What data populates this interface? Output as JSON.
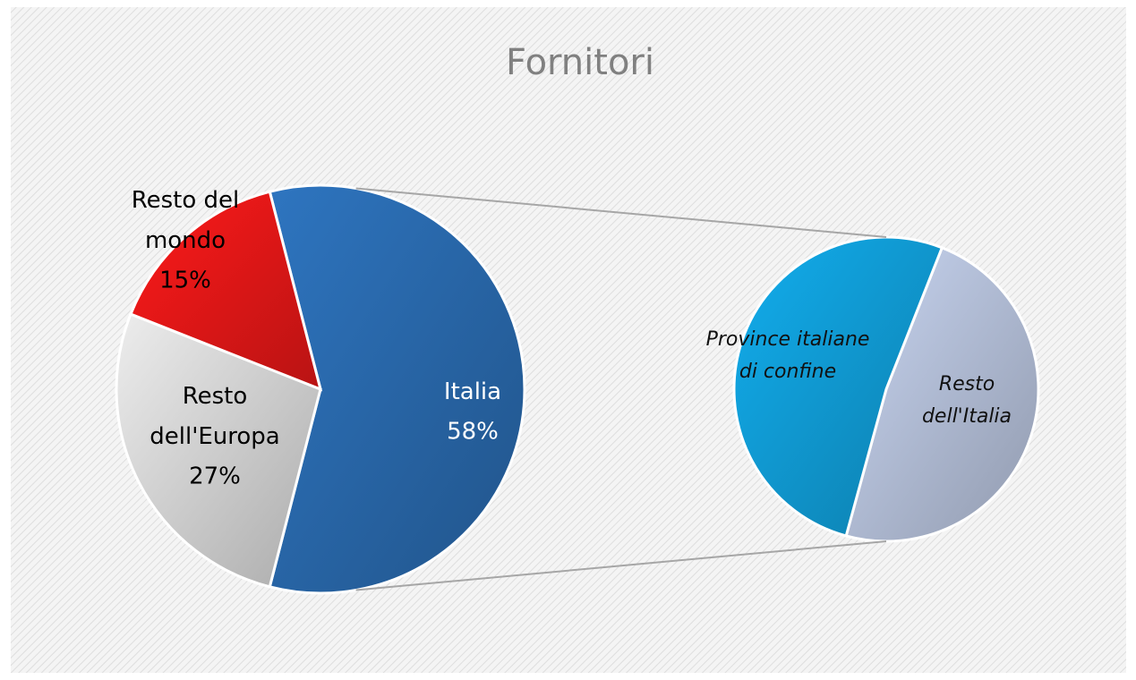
{
  "chart_data": {
    "type": "pie-of-pie",
    "title": "Fornitori",
    "categories": [
      "Italia",
      "Resto dell'Europa",
      "Resto del mondo"
    ],
    "values": [
      58,
      27,
      15
    ],
    "value_labels": [
      "58%",
      "27%",
      "15%"
    ],
    "colors": [
      "#2e75c0",
      "#ededed",
      "#ff1a1a"
    ],
    "secondary": {
      "categories": [
        "Resto dell'Italia",
        "Province italiane di confine"
      ],
      "values": [
        28,
        30
      ],
      "colors": [
        "#c9d6f2",
        "#12aeee"
      ]
    }
  }
}
